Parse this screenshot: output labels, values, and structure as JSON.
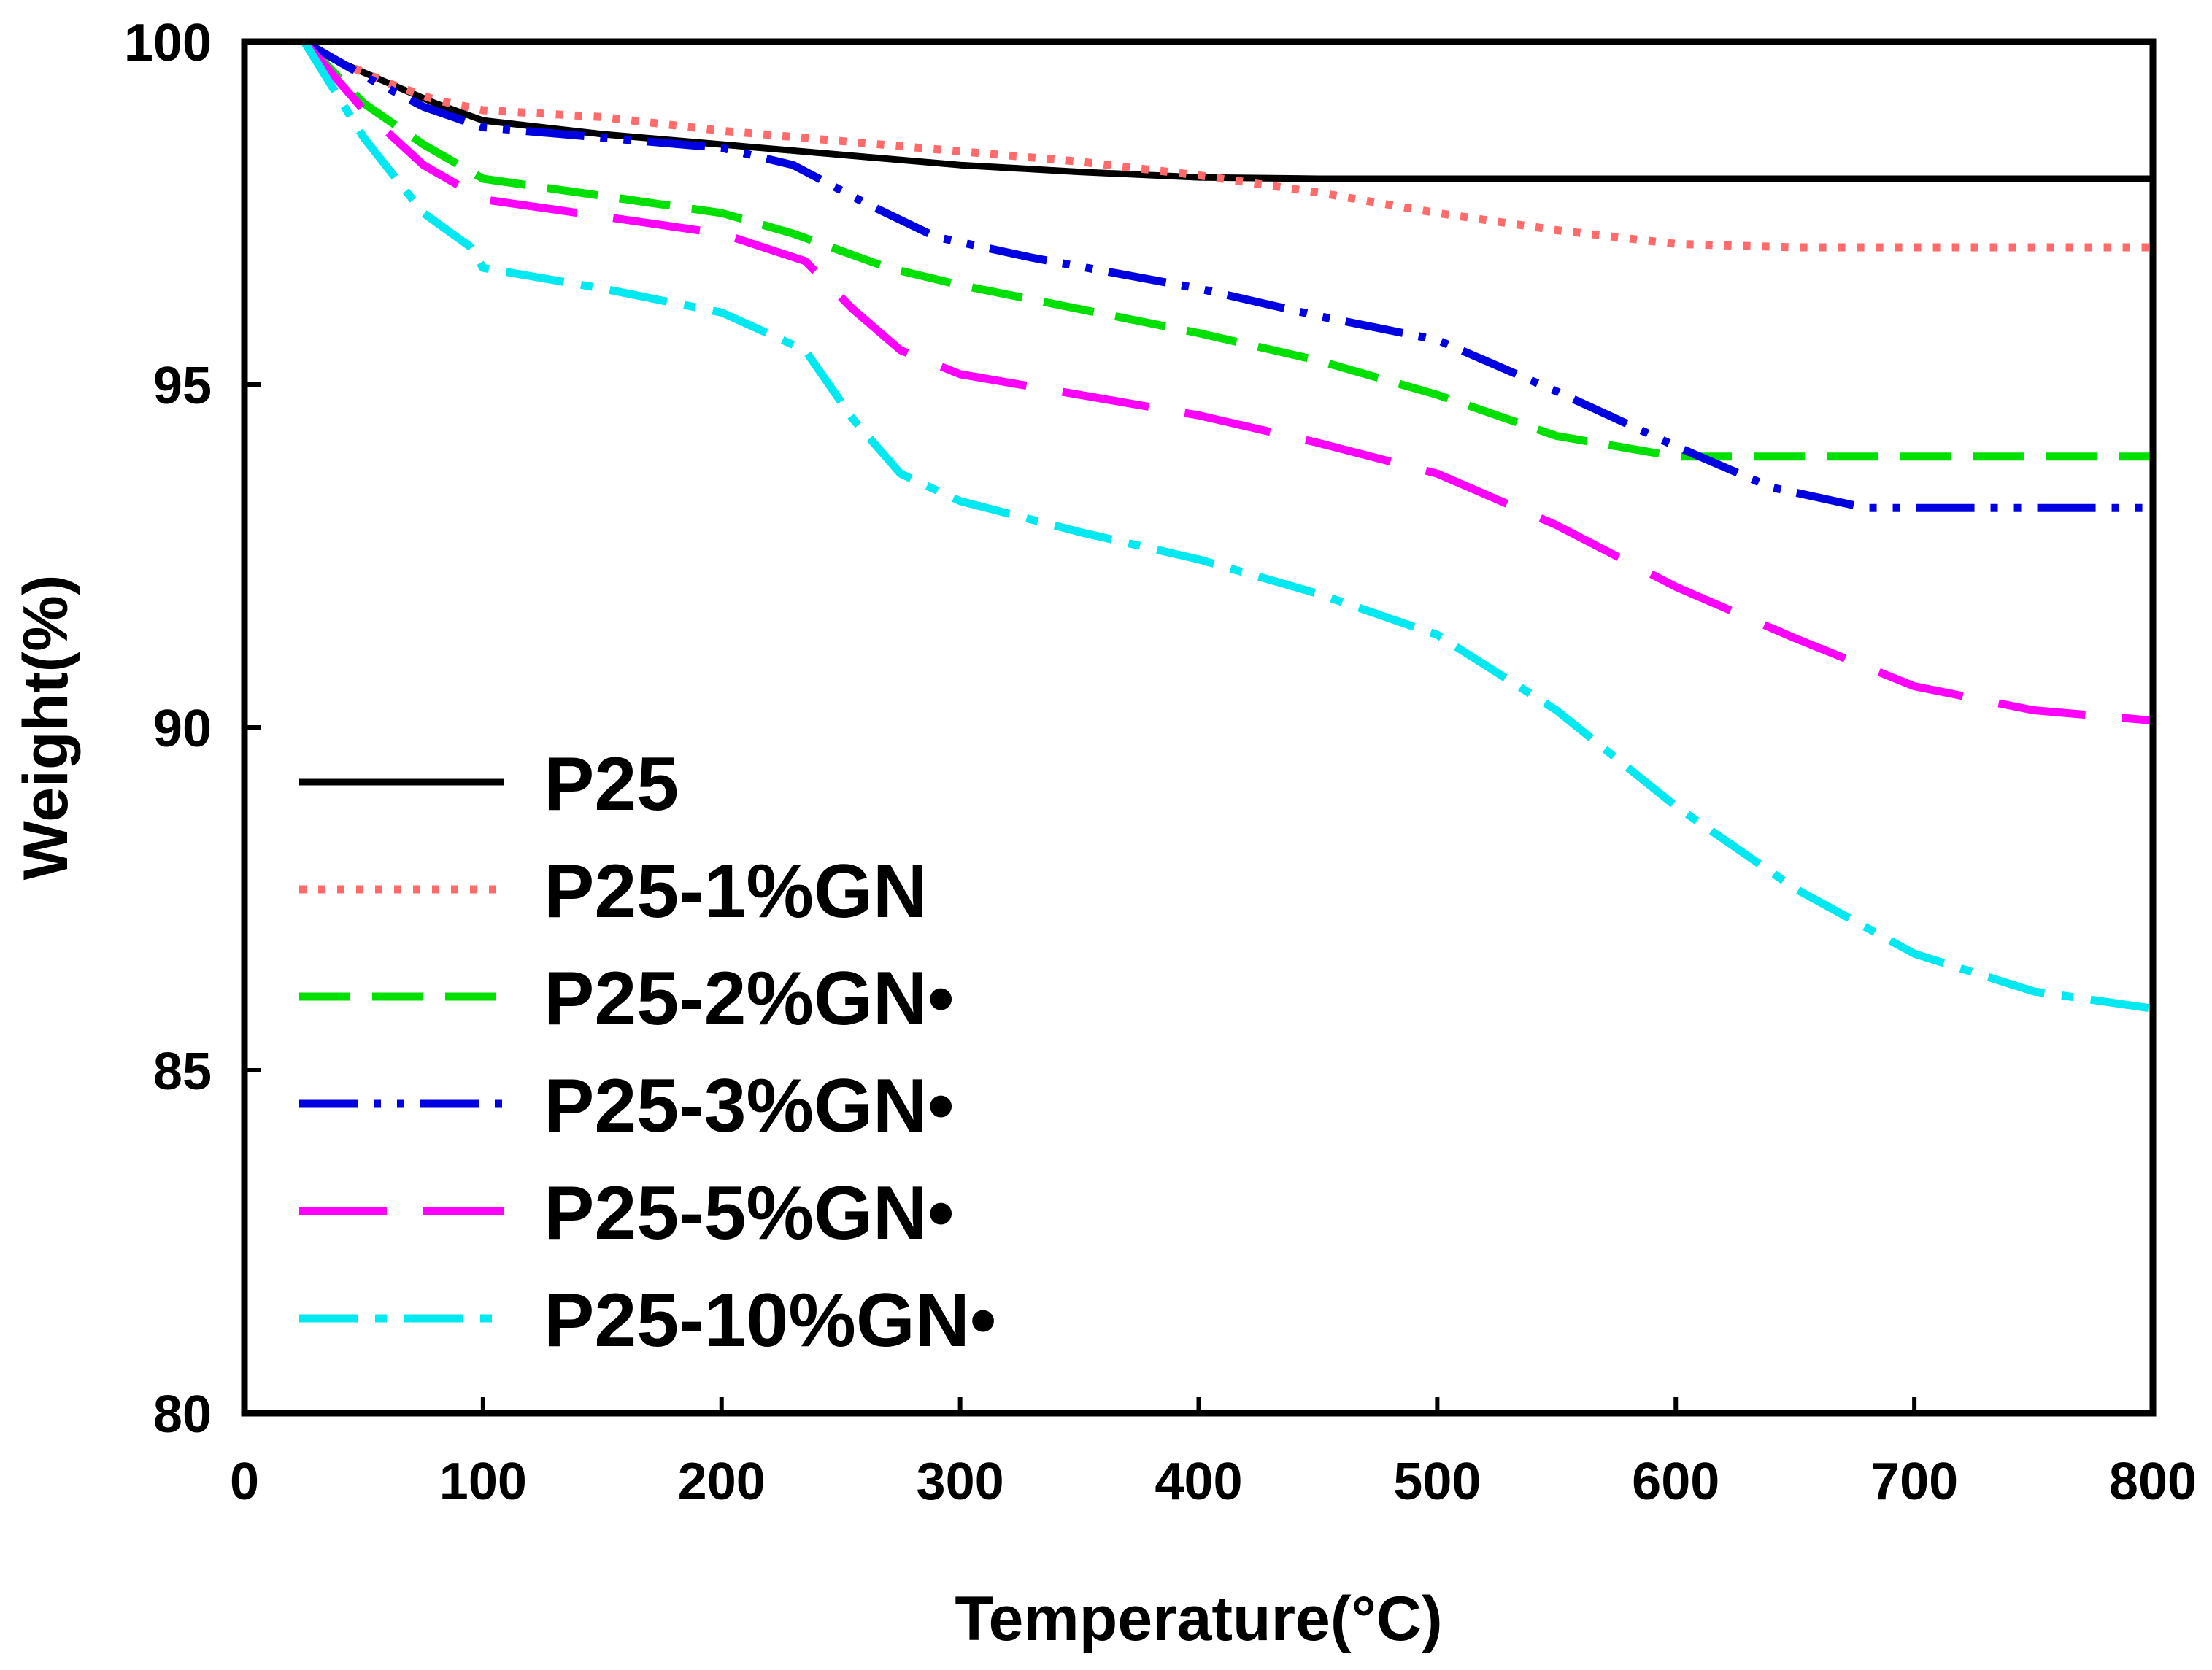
{
  "chart_data": {
    "type": "line",
    "xlabel": "Temperature(°C)",
    "ylabel": "Weight(%)",
    "xlim": [
      0,
      800
    ],
    "ylim": [
      80,
      100
    ],
    "xticks": [
      0,
      100,
      200,
      300,
      400,
      500,
      600,
      700,
      800
    ],
    "yticks": [
      80,
      85,
      90,
      95,
      100
    ],
    "grid": false,
    "legend_position": "lower-left",
    "series": [
      {
        "name": "P25",
        "color": "#000000",
        "style": "solid",
        "x": [
          25,
          40,
          60,
          80,
          100,
          150,
          200,
          250,
          300,
          350,
          400,
          450,
          500,
          600,
          700,
          800
        ],
        "y": [
          100,
          99.7,
          99.4,
          99.1,
          98.85,
          98.65,
          98.5,
          98.35,
          98.2,
          98.1,
          98.02,
          98.0,
          98.0,
          98.0,
          98.0,
          98.0
        ]
      },
      {
        "name": "P25-1%GN",
        "color": "#ff6a6a",
        "style": "dotted",
        "x": [
          25,
          40,
          60,
          80,
          100,
          150,
          200,
          250,
          300,
          350,
          400,
          450,
          500,
          550,
          600,
          650,
          700,
          800
        ],
        "y": [
          100,
          99.7,
          99.4,
          99.15,
          99.0,
          98.9,
          98.7,
          98.55,
          98.4,
          98.25,
          98.05,
          97.8,
          97.5,
          97.25,
          97.05,
          97.0,
          97.0,
          97.0
        ]
      },
      {
        "name": "P25-2%GN•",
        "color": "#00e000",
        "style": "dashed",
        "x": [
          25,
          50,
          75,
          100,
          150,
          200,
          230,
          270,
          300,
          350,
          400,
          450,
          500,
          550,
          600,
          650,
          700,
          800
        ],
        "y": [
          100,
          99.1,
          98.5,
          98.0,
          97.75,
          97.5,
          97.2,
          96.7,
          96.45,
          96.1,
          95.75,
          95.35,
          94.85,
          94.25,
          93.95,
          93.95,
          93.95,
          93.95
        ]
      },
      {
        "name": "P25-3%GN•",
        "color": "#0000e0",
        "style": "dashdotdot",
        "x": [
          25,
          50,
          75,
          100,
          150,
          200,
          230,
          260,
          290,
          330,
          400,
          450,
          500,
          550,
          600,
          640,
          680,
          720,
          800
        ],
        "y": [
          100,
          99.5,
          99.05,
          98.75,
          98.6,
          98.45,
          98.2,
          97.65,
          97.15,
          96.85,
          96.4,
          96.0,
          95.65,
          94.9,
          94.1,
          93.5,
          93.2,
          93.2,
          93.2
        ]
      },
      {
        "name": "P25-5%GN•",
        "color": "#ff00ff",
        "style": "longdash",
        "x": [
          25,
          50,
          75,
          100,
          150,
          200,
          235,
          255,
          275,
          300,
          350,
          400,
          450,
          500,
          550,
          600,
          650,
          700,
          750,
          800
        ],
        "y": [
          100,
          99.0,
          98.2,
          97.7,
          97.45,
          97.2,
          96.8,
          96.1,
          95.5,
          95.15,
          94.85,
          94.55,
          94.15,
          93.7,
          92.95,
          92.05,
          91.3,
          90.6,
          90.25,
          90.1
        ]
      },
      {
        "name": "P25-10%GN•",
        "color": "#00e8f0",
        "style": "dashdot",
        "x": [
          25,
          50,
          75,
          95,
          100,
          150,
          200,
          235,
          255,
          275,
          300,
          350,
          400,
          450,
          500,
          550,
          600,
          650,
          700,
          750,
          800
        ],
        "y": [
          100,
          98.6,
          97.5,
          97.0,
          96.7,
          96.4,
          96.05,
          95.5,
          94.5,
          93.7,
          93.3,
          92.85,
          92.45,
          91.95,
          91.35,
          90.25,
          88.85,
          87.65,
          86.7,
          86.15,
          85.9
        ]
      }
    ]
  }
}
